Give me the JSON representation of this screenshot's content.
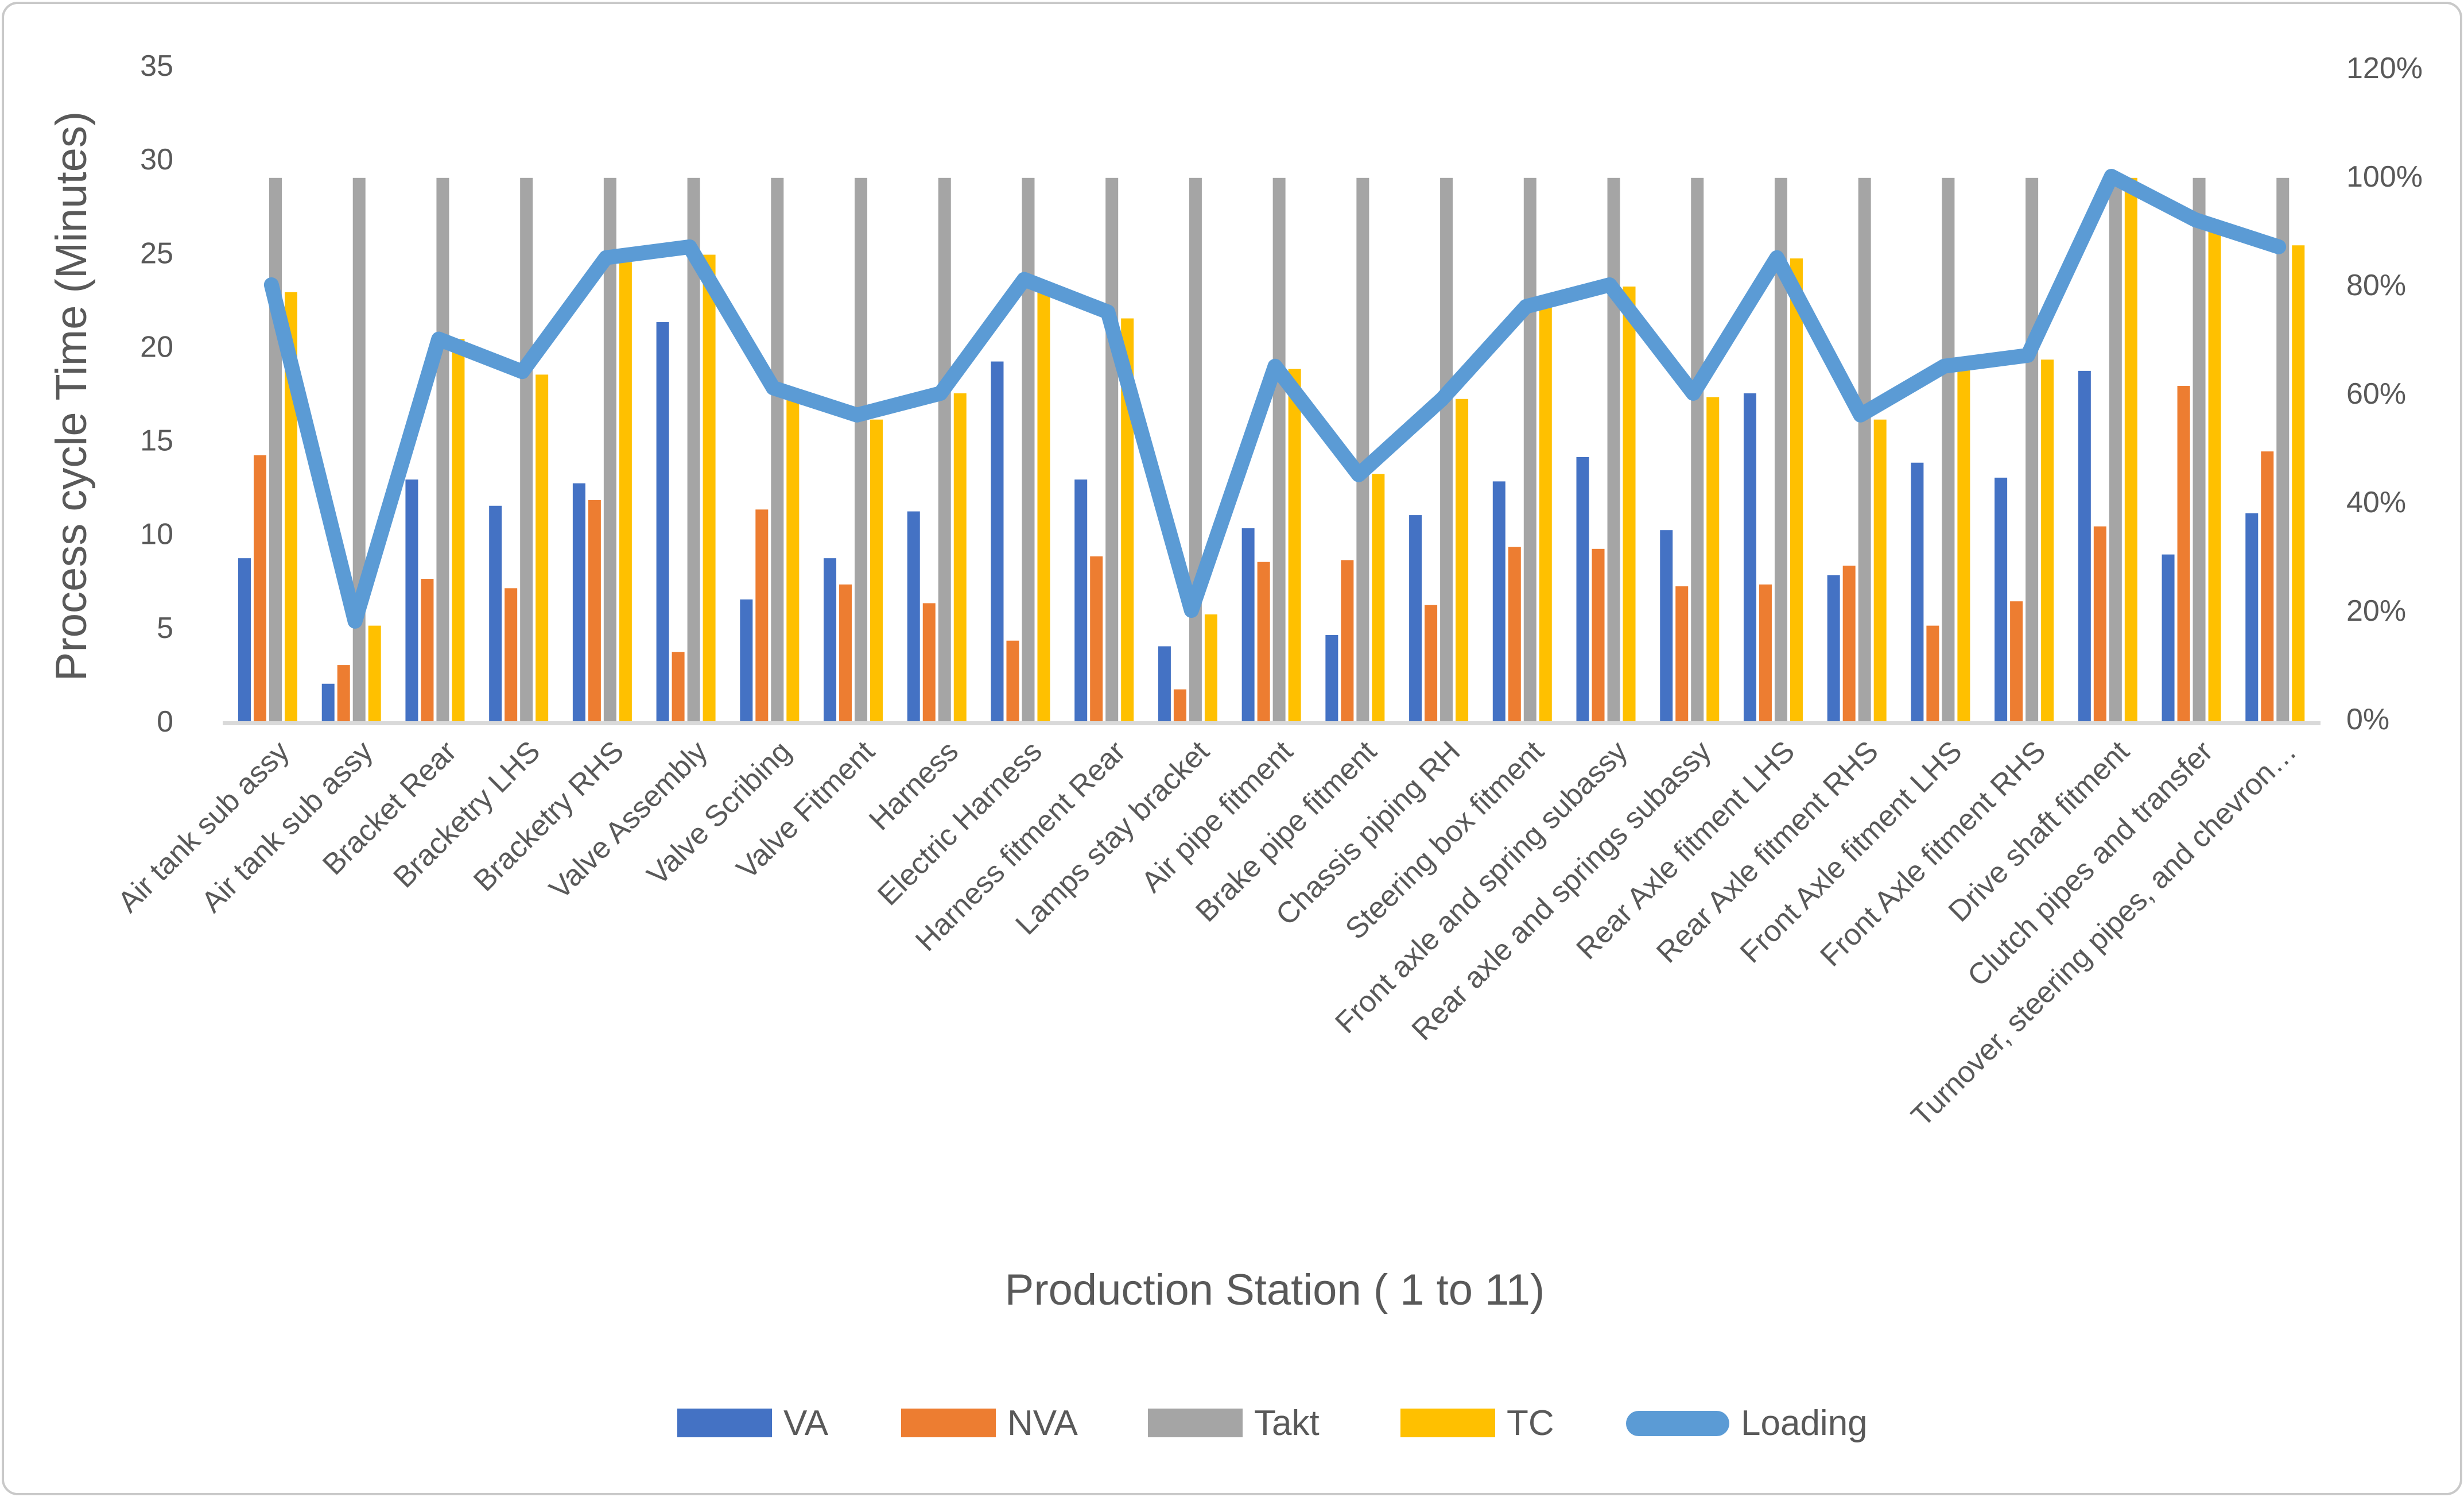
{
  "chart_data": {
    "type": "bar",
    "subtype": "clustered-bar-with-line-combo",
    "title": "",
    "xlabel": "Production Station ( 1 to 11)",
    "ylabel_left": "Process cycle Time (Minutes)",
    "left_axis_ticks": [
      "0",
      "5",
      "10",
      "15",
      "20",
      "25",
      "30",
      "35"
    ],
    "right_axis_ticks": [
      "0%",
      "20%",
      "40%",
      "60%",
      "80%",
      "100%",
      "120%"
    ],
    "left_axis_range": [
      0,
      35
    ],
    "right_axis_range_pct": [
      0,
      120
    ],
    "grid": false,
    "legend_position": "bottom",
    "categories": [
      "Air tank sub assy",
      "Air tank sub assy",
      "Bracket Rear",
      "Bracketry LHS",
      "Bracketry RHS",
      "Valve Assembly",
      "Valve Scribing",
      "Valve Fitment",
      "Harness",
      "Electric Harness",
      "Harness fitment Rear",
      "Lamps stay bracket",
      "Air pipe fitment",
      "Brake pipe fitment",
      "Chassis piping RH",
      "Steering box fitment",
      "Front axle and spring subassy",
      "Rear axle and springs subassy",
      "Rear Axle fitment LHS",
      "Rear Axle fitment RHS",
      "Front Axle fitment LHS",
      "Front Axle fitment RHS",
      "Drive shaft fitment",
      "Clutch pipes and transfer",
      "Turnover, steering pipes, and chevron…"
    ],
    "series": [
      {
        "name": "VA",
        "type": "bar",
        "axis": "left",
        "color": "#4472C4",
        "values": [
          8.7,
          2.0,
          12.9,
          11.5,
          12.7,
          21.3,
          6.5,
          8.7,
          11.2,
          19.2,
          12.9,
          4.0,
          10.3,
          4.6,
          11.0,
          12.8,
          14.1,
          10.2,
          17.5,
          7.8,
          13.8,
          13.0,
          18.7,
          8.9,
          11.1
        ]
      },
      {
        "name": "NVA",
        "type": "bar",
        "axis": "left",
        "color": "#ED7D31",
        "values": [
          14.2,
          3.0,
          7.6,
          7.1,
          11.8,
          3.7,
          11.3,
          7.3,
          6.3,
          4.3,
          8.8,
          1.7,
          8.5,
          8.6,
          6.2,
          9.3,
          9.2,
          7.2,
          7.3,
          8.3,
          5.1,
          6.4,
          10.4,
          17.9,
          14.4
        ]
      },
      {
        "name": "Takt",
        "type": "bar",
        "axis": "left",
        "color": "#A5A5A5",
        "values": [
          29,
          29,
          29,
          29,
          29,
          29,
          29,
          29,
          29,
          29,
          29,
          29,
          29,
          29,
          29,
          29,
          29,
          29,
          29,
          29,
          29,
          29,
          29,
          29,
          29
        ]
      },
      {
        "name": "TC",
        "type": "bar",
        "axis": "left",
        "color": "#FFC000",
        "values": [
          22.9,
          5.1,
          20.4,
          18.5,
          24.5,
          24.9,
          17.7,
          16.1,
          17.5,
          23.4,
          21.5,
          5.7,
          18.8,
          13.2,
          17.2,
          22.1,
          23.2,
          17.3,
          24.7,
          16.1,
          18.9,
          19.3,
          29.0,
          26.3,
          25.4
        ]
      },
      {
        "name": "Loading",
        "type": "line",
        "axis": "right",
        "color": "#5B9BD5",
        "values_pct": [
          80,
          18,
          70,
          64,
          85,
          87,
          61,
          56,
          60,
          81,
          75,
          20,
          65,
          45,
          59,
          76,
          80,
          60,
          85,
          56,
          65,
          67,
          100,
          92,
          87
        ]
      }
    ]
  }
}
